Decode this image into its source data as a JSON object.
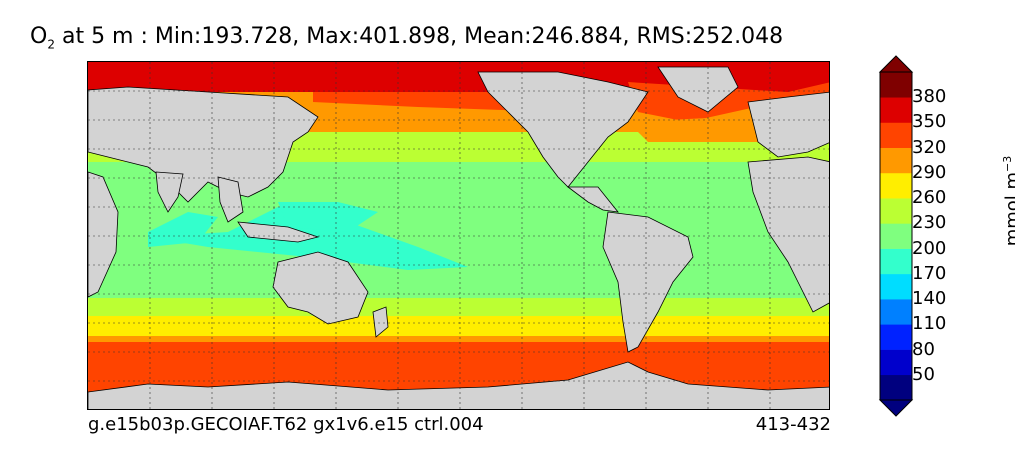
{
  "title": {
    "var": "O",
    "sub": "2",
    "text": " at 5 m : Min:193.728, Max:401.898, Mean:246.884, RMS:252.048"
  },
  "footer": {
    "run": "g.e15b03p.GECOIAF.T62 gx1v6.e15 ctrl.004",
    "years": "413-432"
  },
  "colorbar": {
    "unit": "mmol m",
    "unit_exp": "−3",
    "ticks": [
      "50",
      "80",
      "110",
      "140",
      "170",
      "200",
      "230",
      "260",
      "290",
      "320",
      "350",
      "380"
    ],
    "colors": [
      "#00007f",
      "#0000cc",
      "#0022ff",
      "#0080ff",
      "#00ddff",
      "#33ffcc",
      "#7fff7f",
      "#bbff33",
      "#ffee00",
      "#ff9900",
      "#ff4400",
      "#dd0000",
      "#7f0000"
    ]
  },
  "map": {
    "land_color": "#d3d3d3",
    "grid": true,
    "bands": [
      {
        "level": "380+",
        "color": "#dd0000"
      },
      {
        "level": "350",
        "color": "#ff4400"
      },
      {
        "level": "320",
        "color": "#ff9900"
      },
      {
        "level": "290",
        "color": "#ffee00"
      },
      {
        "level": "260",
        "color": "#bbff33"
      },
      {
        "level": "230",
        "color": "#7fff7f"
      },
      {
        "level": "200",
        "color": "#33ffcc"
      }
    ]
  }
}
